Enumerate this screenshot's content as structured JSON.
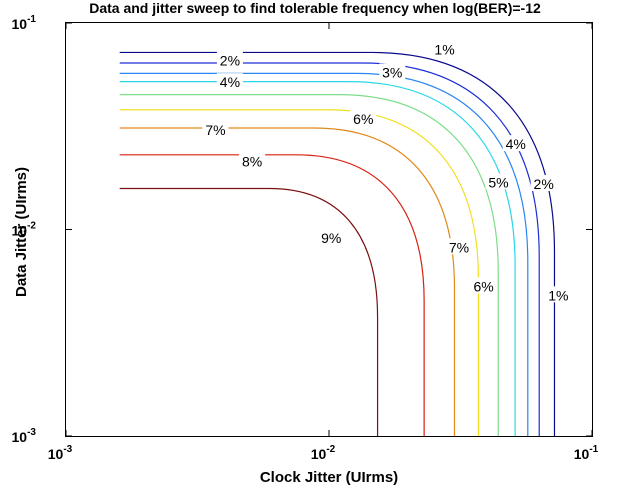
{
  "chart_data": {
    "type": "contour",
    "title": "Data and jitter sweep to find tolerable frequency when log(BER)=-12",
    "xlabel": "Clock Jitter (UIrms)",
    "ylabel": "Data Jitter (UIrms)",
    "xscale": "log",
    "yscale": "log",
    "xlim": [
      0.001,
      0.1
    ],
    "ylim": [
      0.001,
      0.1
    ],
    "grid": false,
    "x_ticks": [
      {
        "base": "10",
        "exp": "-3",
        "value": 0.001
      },
      {
        "base": "10",
        "exp": "-2",
        "value": 0.01
      },
      {
        "base": "10",
        "exp": "-1",
        "value": 0.1
      }
    ],
    "y_ticks": [
      {
        "base": "10",
        "exp": "-3",
        "value": 0.001
      },
      {
        "base": "10",
        "exp": "-2",
        "value": 0.01
      },
      {
        "base": "10",
        "exp": "-1",
        "value": 0.1
      }
    ],
    "series": [
      {
        "level": "1%",
        "color": "#0a0a8c",
        "x_start": 0.0016,
        "y_end": 0.072,
        "x_max": 0.072,
        "labels": [
          {
            "text": "1%",
            "x": 0.0275,
            "y": 0.0745
          },
          {
            "text": "1%",
            "x": 0.0745,
            "y": 0.0048
          }
        ]
      },
      {
        "level": "2%",
        "color": "#1c2fd6",
        "x_start": 0.0016,
        "y_end": 0.064,
        "x_max": 0.063,
        "labels": [
          {
            "text": "2%",
            "x": 0.0042,
            "y": 0.066
          },
          {
            "text": "2%",
            "x": 0.0655,
            "y": 0.0166
          }
        ]
      },
      {
        "level": "3%",
        "color": "#2a86f0",
        "x_start": 0.0016,
        "y_end": 0.057,
        "x_max": 0.057,
        "labels": [
          {
            "text": "3%",
            "x": 0.0174,
            "y": 0.0576
          }
        ]
      },
      {
        "level": "4%",
        "color": "#28d8e8",
        "x_start": 0.0016,
        "y_end": 0.052,
        "x_max": 0.051,
        "labels": [
          {
            "text": "4%",
            "x": 0.0042,
            "y": 0.0517
          },
          {
            "text": "4%",
            "x": 0.0513,
            "y": 0.0259
          }
        ]
      },
      {
        "level": "5%",
        "color": "#7ddc8a",
        "x_start": 0.0016,
        "y_end": 0.045,
        "x_max": 0.044,
        "labels": [
          {
            "text": "5%",
            "x": 0.0441,
            "y": 0.0169
          }
        ]
      },
      {
        "level": "6%",
        "color": "#f0e020",
        "x_start": 0.0016,
        "y_end": 0.038,
        "x_max": 0.037,
        "labels": [
          {
            "text": "6%",
            "x": 0.0135,
            "y": 0.0342
          },
          {
            "text": "6%",
            "x": 0.0387,
            "y": 0.0053
          }
        ]
      },
      {
        "level": "7%",
        "color": "#e08a1a",
        "x_start": 0.0016,
        "y_end": 0.031,
        "x_max": 0.03,
        "labels": [
          {
            "text": "7%",
            "x": 0.0037,
            "y": 0.0303
          },
          {
            "text": "7%",
            "x": 0.0312,
            "y": 0.0082
          }
        ]
      },
      {
        "level": "8%",
        "color": "#d82010",
        "x_start": 0.0016,
        "y_end": 0.023,
        "x_max": 0.023,
        "labels": [
          {
            "text": "8%",
            "x": 0.0051,
            "y": 0.0214
          }
        ]
      },
      {
        "level": "9%",
        "color": "#7a1010",
        "x_start": 0.0016,
        "y_end": 0.0158,
        "x_max": 0.0153,
        "labels": [
          {
            "text": "9%",
            "x": 0.0102,
            "y": 0.0091
          }
        ]
      }
    ]
  }
}
